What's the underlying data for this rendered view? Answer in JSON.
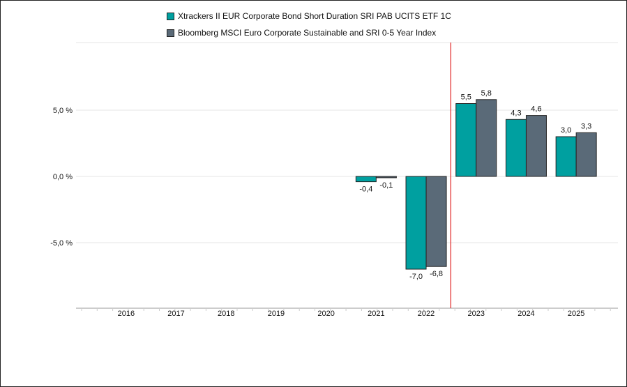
{
  "chart_data": {
    "type": "bar",
    "categories": [
      "2016",
      "2017",
      "2018",
      "2019",
      "2020",
      "2021",
      "2022",
      "2023",
      "2024",
      "2025"
    ],
    "series": [
      {
        "name": "Xtrackers II EUR Corporate Bond Short Duration SRI PAB UCITS ETF 1C",
        "color": "#00a0a0",
        "values": [
          null,
          null,
          null,
          null,
          null,
          -0.4,
          -7.0,
          5.5,
          4.3,
          3.0
        ],
        "labels": [
          "",
          "",
          "",
          "",
          "",
          "-0,4",
          "-7,0",
          "5,5",
          "4,3",
          "3,0"
        ]
      },
      {
        "name": "Bloomberg MSCI Euro Corporate Sustainable and SRI 0-5 Year Index",
        "color": "#5a6a78",
        "values": [
          null,
          null,
          null,
          null,
          null,
          -0.1,
          -6.8,
          5.8,
          4.6,
          3.3
        ],
        "labels": [
          "",
          "",
          "",
          "",
          "",
          "-0,1",
          "-6,8",
          "5,8",
          "4,6",
          "3,3"
        ]
      }
    ],
    "yticks": [
      {
        "value": 5,
        "label": "5,0 %"
      },
      {
        "value": 0,
        "label": "0,0 %"
      },
      {
        "value": -5,
        "label": "-5,0 %"
      }
    ],
    "ylim": [
      -10,
      10
    ],
    "grid": true,
    "legend_position": "top",
    "marker_line": {
      "between": [
        "2022",
        "2023"
      ],
      "color": "#e02020"
    }
  }
}
